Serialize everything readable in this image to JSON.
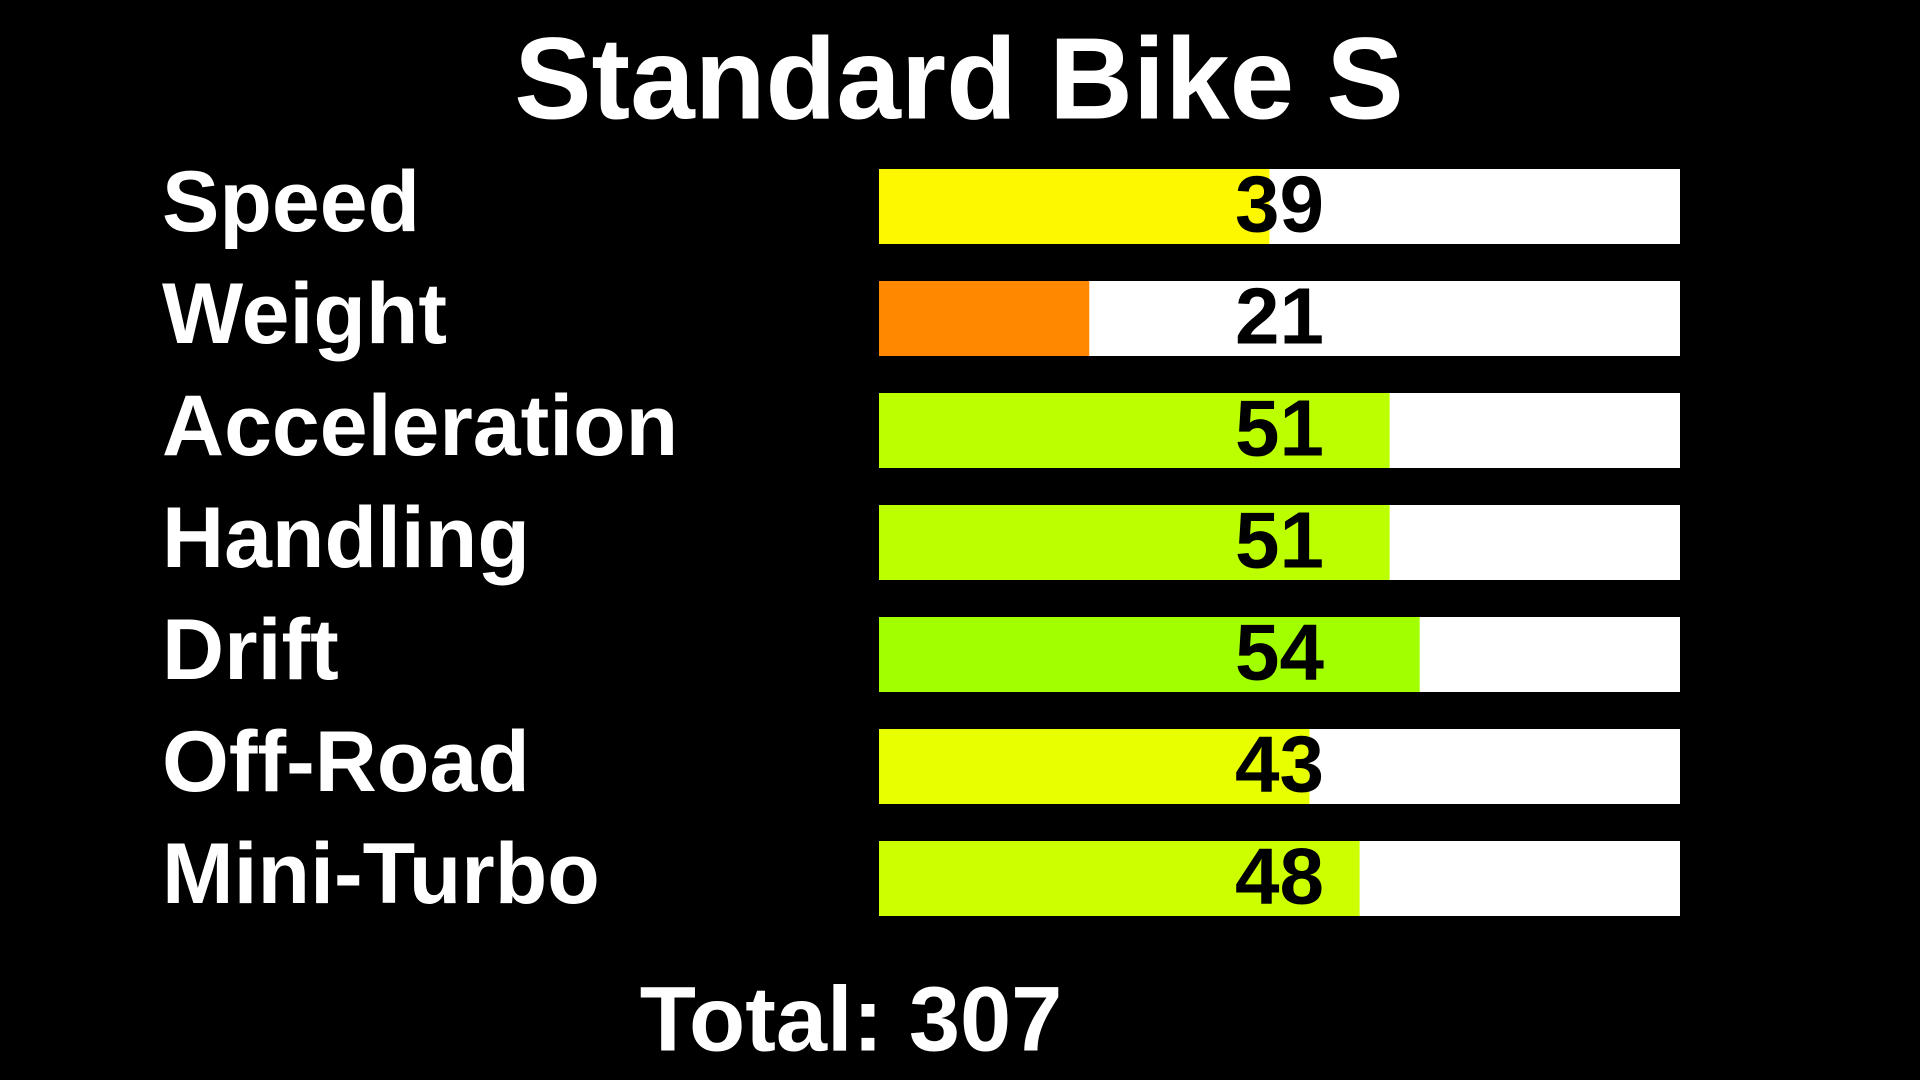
{
  "chart_data": {
    "type": "bar",
    "orientation": "horizontal",
    "title": "Standard Bike S",
    "categories": [
      "Speed",
      "Weight",
      "Acceleration",
      "Handling",
      "Drift",
      "Off-Road",
      "Mini-Turbo"
    ],
    "values": [
      39,
      21,
      51,
      51,
      54,
      43,
      48
    ],
    "colors": [
      "#fdf700",
      "#ff8800",
      "#bbff00",
      "#bbff00",
      "#a2ff00",
      "#e8ff00",
      "#ccff00"
    ],
    "track_color": "#ffffff",
    "xlim": [
      0,
      80
    ],
    "total_label": "Total: 307"
  }
}
